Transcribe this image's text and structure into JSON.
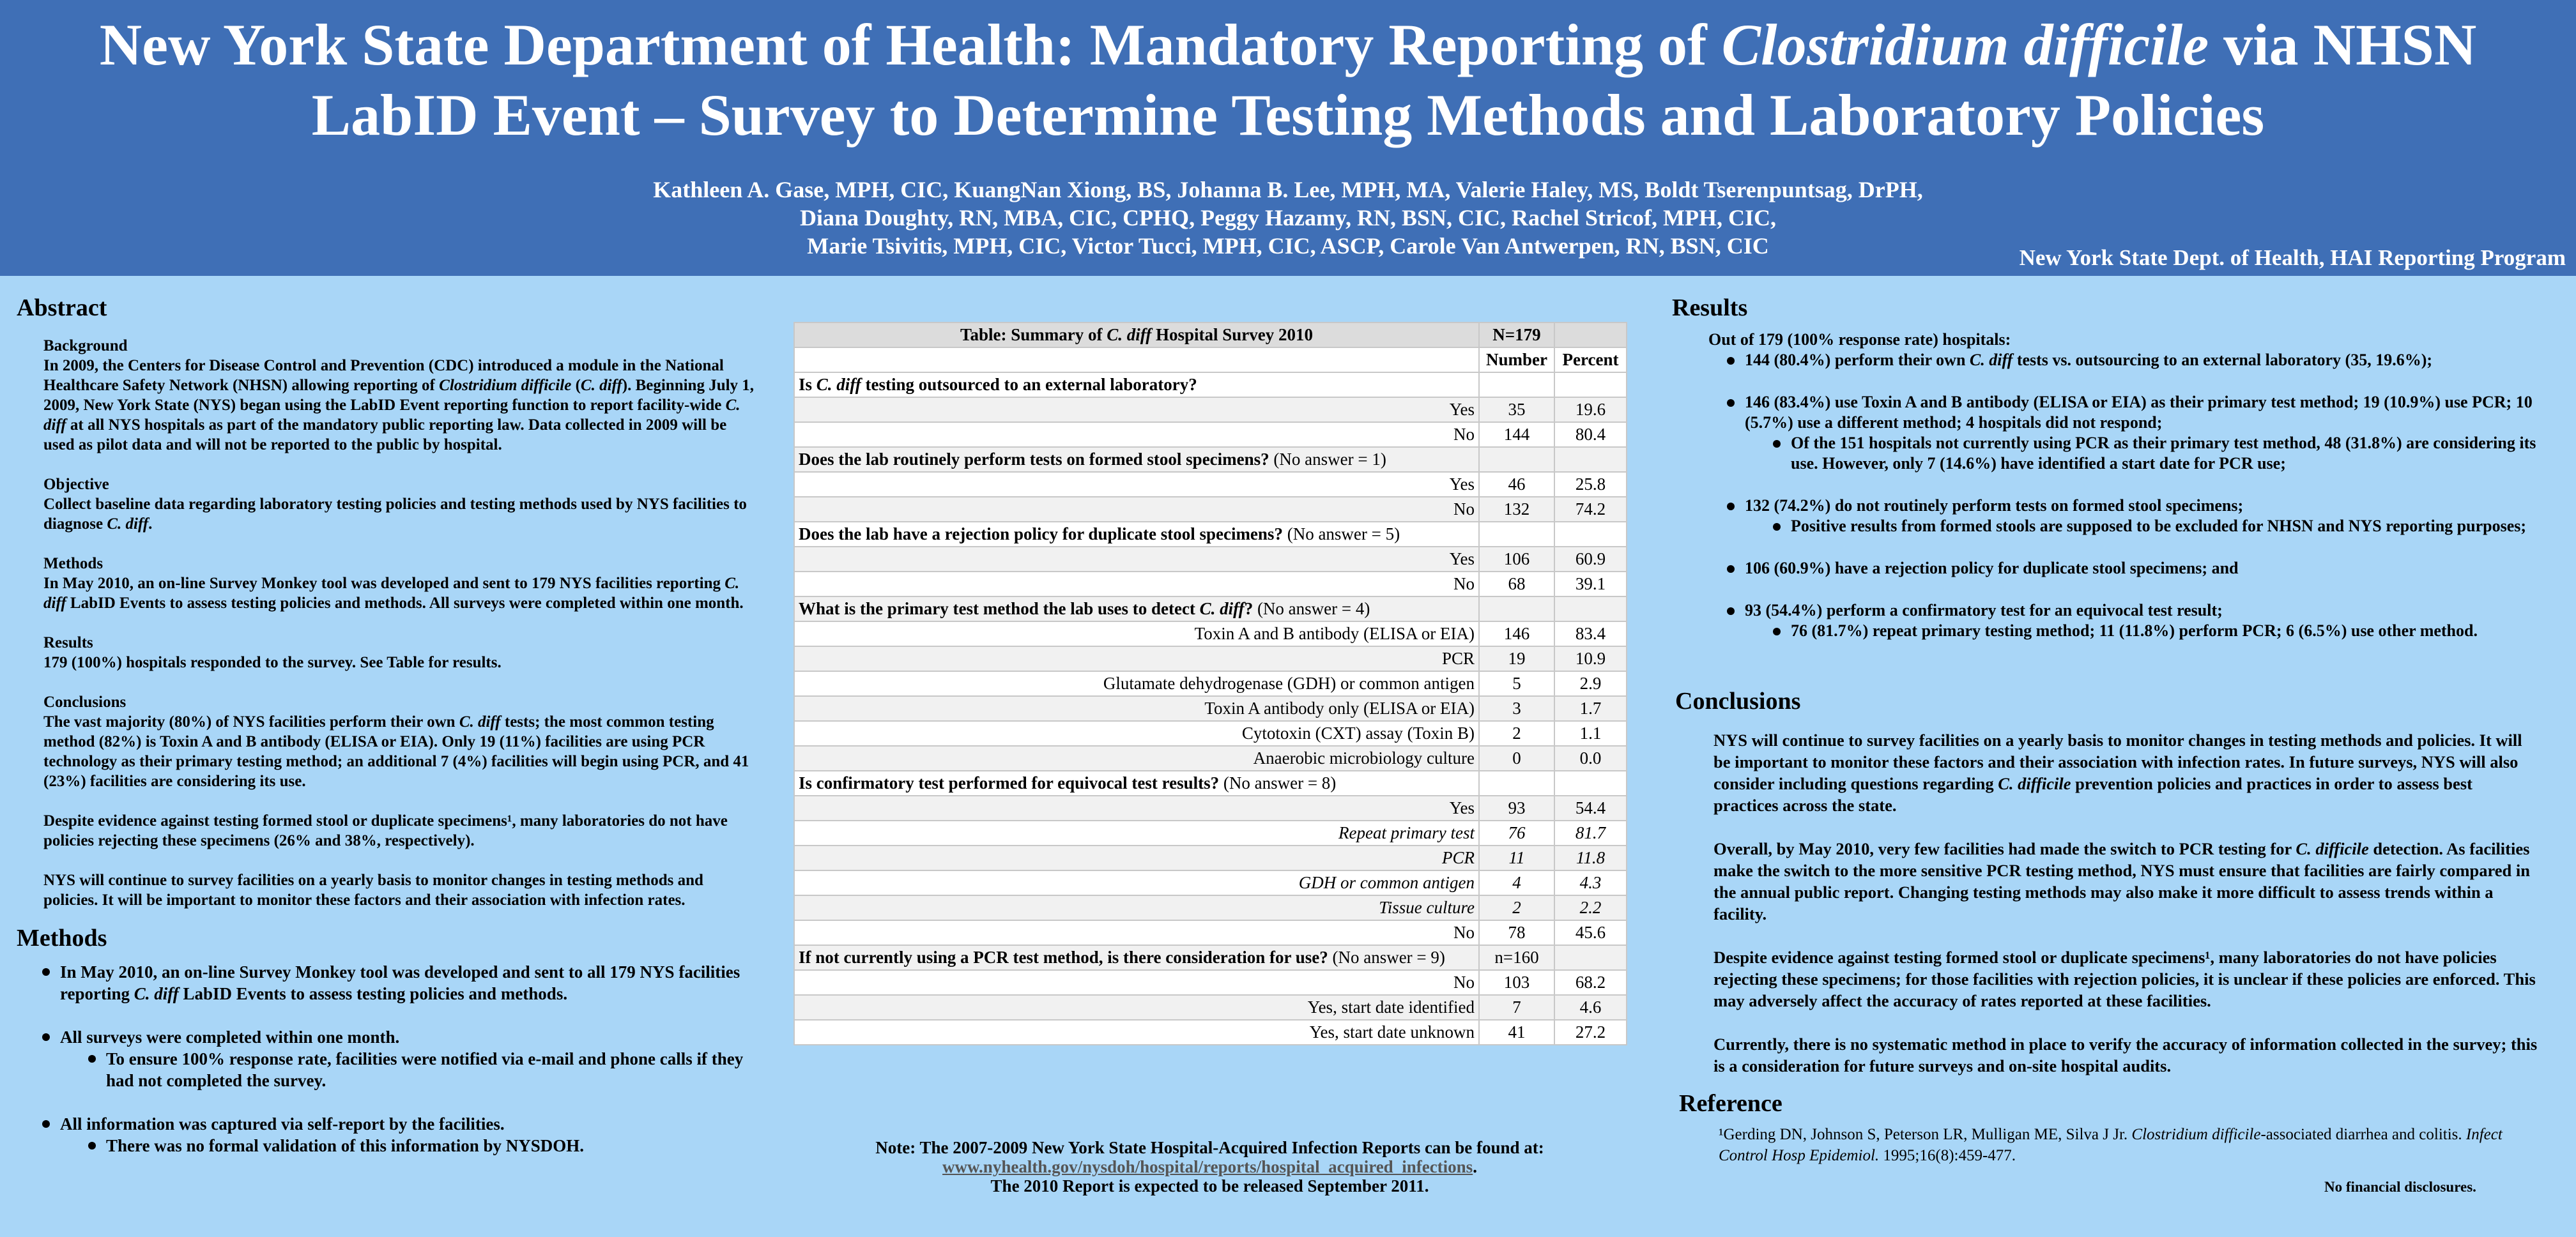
{
  "header": {
    "title": [
      [
        "New York State Department of Health: Mandatory Reporting of ",
        "Clostridium difficile",
        " via NHSN"
      ],
      [
        "LabID Event – Survey to Determine Testing Methods and Laboratory Policies"
      ]
    ],
    "authors": [
      "Kathleen A. Gase, MPH, CIC, KuangNan Xiong, BS, Johanna B. Lee, MPH, MA, Valerie Haley, MS, Boldt Tserenpuntsag, DrPH,",
      "Diana Doughty, RN, MBA, CIC, CPHQ, Peggy Hazamy, RN, BSN, CIC, Rachel Stricof, MPH, CIC,",
      "Marie Tsivitis, MPH, CIC, Victor Tucci, MPH, CIC, ASCP, Carole Van Antwerpen, RN, BSN, CIC"
    ],
    "program": "New York State Dept. of Health, HAI Reporting Program"
  },
  "abstract": {
    "heading": "Abstract",
    "sections": [
      {
        "title": "Background",
        "paragraphs": [
          [
            "In 2009, the Centers for Disease Control and Prevention (CDC) introduced a module in the National Healthcare Safety Network (NHSN) allowing reporting of ",
            "Clostridium difficile",
            " (",
            "C. diff",
            "). Beginning July 1, 2009, New York State (NYS) began using the LabID Event reporting function to report facility-wide ",
            "C. diff",
            " at all NYS hospitals as part of the mandatory public reporting law. Data collected in 2009 will be used as pilot data and will not be reported to the public by hospital."
          ]
        ]
      },
      {
        "title": "Objective",
        "paragraphs": [
          [
            "Collect baseline data regarding laboratory testing policies and testing methods used by NYS facilities to diagnose ",
            "C. diff",
            "."
          ]
        ]
      },
      {
        "title": "Methods",
        "paragraphs": [
          [
            "In May 2010, an on-line Survey Monkey tool was developed and sent to 179 NYS facilities reporting ",
            "C. diff",
            " LabID Events to assess testing policies and methods. All surveys were completed within one month."
          ]
        ]
      },
      {
        "title": "Results",
        "paragraphs": [
          [
            "179 (100%) hospitals responded to the survey. See Table for results."
          ]
        ]
      },
      {
        "title": "Conclusions",
        "paragraphs": [
          [
            "The vast majority (80%) of NYS facilities perform their own ",
            "C. diff",
            " tests; the most common testing method (82%) is Toxin A and B antibody (ELISA or EIA). Only 19 (11%) facilities are using PCR technology as their primary testing method; an additional 7 (4%) facilities will begin using PCR, and 41 (23%) facilities are considering its use."
          ],
          [
            "Despite evidence against testing formed stool or duplicate specimens¹, many laboratories do not have policies rejecting these specimens (26% and 38%, respectively)."
          ],
          [
            "NYS will continue to survey facilities on a yearly basis to monitor changes in testing methods and policies. It will be important to monitor these factors and their association with infection rates."
          ]
        ]
      }
    ]
  },
  "methods": {
    "heading": "Methods",
    "bullets": [
      {
        "text": [
          "In May 2010, an on-line Survey Monkey tool was developed and sent to all 179 NYS facilities reporting ",
          "C. diff",
          " LabID Events to assess testing policies and methods."
        ]
      },
      {
        "text": [
          "All surveys were completed within one month."
        ],
        "sub": [
          [
            "To ensure 100% response rate, facilities were notified via e-mail and phone calls if they had not completed the survey."
          ]
        ]
      },
      {
        "text": [
          "All information was captured via self-report by the facilities."
        ],
        "sub": [
          [
            "There was no formal validation of this information by NYSDOH."
          ]
        ]
      }
    ]
  },
  "table": {
    "title": [
      "Table: Summary of ",
      "C. diff",
      " Hospital Survey 2010"
    ],
    "n": "N=179",
    "headers": [
      "Number",
      "Percent"
    ],
    "rows": [
      {
        "question": [
          "Is ",
          "C. diff",
          " testing outsourced to an external laboratory?"
        ]
      },
      {
        "cells": [
          "Yes",
          "35",
          "19.6"
        ]
      },
      {
        "cells": [
          "No",
          "144",
          "80.4"
        ]
      },
      {
        "question": [
          "Does the lab routinely perform tests on formed stool specimens?"
        ],
        "note": "(No answer = 1)"
      },
      {
        "cells": [
          "Yes",
          "46",
          "25.8"
        ]
      },
      {
        "cells": [
          "No",
          "132",
          "74.2"
        ]
      },
      {
        "question": [
          "Does the lab have a rejection policy for duplicate stool specimens?"
        ],
        "note": "(No answer = 5)"
      },
      {
        "cells": [
          "Yes",
          "106",
          "60.9"
        ]
      },
      {
        "cells": [
          "No",
          "68",
          "39.1"
        ]
      },
      {
        "question": [
          "What is the primary test method the lab uses to detect ",
          "C. diff",
          "?"
        ],
        "note": "(No answer = 4)"
      },
      {
        "cells": [
          "Toxin A and B antibody (ELISA or EIA)",
          "146",
          "83.4"
        ]
      },
      {
        "cells": [
          "PCR",
          "19",
          "10.9"
        ]
      },
      {
        "cells": [
          "Glutamate dehydrogenase (GDH) or common antigen",
          "5",
          "2.9"
        ]
      },
      {
        "cells": [
          "Toxin A antibody only (ELISA or EIA)",
          "3",
          "1.7"
        ]
      },
      {
        "cells": [
          "Cytotoxin (CXT) assay (Toxin B)",
          "2",
          "1.1"
        ]
      },
      {
        "cells": [
          "Anaerobic microbiology culture",
          "0",
          "0.0"
        ]
      },
      {
        "question": [
          "Is confirmatory test performed for equivocal test results?"
        ],
        "note": "(No answer = 8)"
      },
      {
        "cells": [
          "Yes",
          "93",
          "54.4"
        ]
      },
      {
        "cells": [
          "Repeat primary test",
          "76",
          "81.7"
        ],
        "italic": true
      },
      {
        "cells": [
          "PCR",
          "11",
          "11.8"
        ],
        "italic": true
      },
      {
        "cells": [
          "GDH or common antigen",
          "4",
          "4.3"
        ],
        "italic": true
      },
      {
        "cells": [
          "Tissue culture",
          "2",
          "2.2"
        ],
        "italic": true
      },
      {
        "cells": [
          "No",
          "78",
          "45.6"
        ]
      },
      {
        "question": [
          "If not currently using a PCR test method, is there consideration for use?"
        ],
        "note": "(No answer = 9)",
        "n": "n=160"
      },
      {
        "cells": [
          "No",
          "103",
          "68.2"
        ]
      },
      {
        "cells": [
          "Yes, start date identified",
          "7",
          "4.6"
        ]
      },
      {
        "cells": [
          "Yes, start date unknown",
          "41",
          "27.2"
        ]
      }
    ]
  },
  "note": {
    "line1": "Note: The 2007-2009 New York State Hospital-Acquired Infection Reports can be found at:",
    "link": "www.nyhealth.gov/nysdoh/hospital/reports/hospital_acquired_infections",
    "link_end": ".",
    "line3": "The 2010 Report is expected to be released September 2011."
  },
  "results": {
    "heading": "Results",
    "intro": "Out of 179 (100% response rate) hospitals:",
    "bullets": [
      {
        "text": [
          "144 (80.4%) perform their own ",
          "C. diff",
          " tests vs. outsourcing to an external laboratory (35, 19.6%);"
        ]
      },
      {
        "text": [
          "146 (83.4%) use Toxin A and B antibody (ELISA or EIA) as their primary test method; 19 (10.9%) use PCR; 10 (5.7%) use a different method; 4 hospitals did not respond;"
        ],
        "sub": [
          [
            "Of the 151 hospitals not currently using PCR as their primary test method, 48 (31.8%) are considering its use. However, only 7 (14.6%) have identified a start date for PCR use;"
          ]
        ]
      },
      {
        "text": [
          "132 (74.2%) do not routinely perform tests on formed stool specimens;"
        ],
        "sub": [
          [
            "Positive results from formed stools are supposed to be excluded for NHSN and NYS reporting purposes;"
          ]
        ]
      },
      {
        "text": [
          "106 (60.9%) have a rejection policy for duplicate stool specimens; and"
        ]
      },
      {
        "text": [
          "93 (54.4%) perform a confirmatory test for an equivocal test result;"
        ],
        "sub": [
          [
            "76 (81.7%) repeat primary testing method; 11 (11.8%) perform PCR; 6 (6.5%) use other method."
          ]
        ]
      }
    ]
  },
  "conclusions": {
    "heading": "Conclusions",
    "paragraphs": [
      [
        "NYS will continue to survey facilities on a yearly basis to monitor changes in testing methods and policies. It will be important to monitor these factors and their association with infection rates. In future surveys, NYS will also consider including questions regarding ",
        "C. difficile",
        " prevention policies and practices in order to assess best practices across the state."
      ],
      [
        "Overall, by May 2010, very few facilities had made the switch to PCR testing for ",
        "C. difficile",
        " detection. As facilities make the switch to the more sensitive PCR testing method, NYS must ensure that facilities are fairly compared in the annual public report. Changing testing methods may also make it more difficult to assess trends within a facility."
      ],
      [
        "Despite evidence against testing formed stool or duplicate specimens¹, many laboratories do not have policies rejecting these specimens; for those facilities with rejection policies, it is unclear if these policies are enforced. This may adversely affect the accuracy of rates reported at these facilities."
      ],
      [
        "Currently, there is no systematic method in place to verify the accuracy of information collected in the survey; this is a consideration for future surveys and on-site hospital audits."
      ]
    ]
  },
  "reference": {
    "heading": "Reference",
    "text": [
      "¹Gerding DN, Johnson S, Peterson LR, Mulligan ME, Silva J Jr. ",
      "Clostridium difficile",
      "-associated diarrhea and colitis. ",
      "Infect Control Hosp Epidemiol.",
      " 1995;16(8):459-477."
    ],
    "disclosure": "No financial disclosures."
  }
}
